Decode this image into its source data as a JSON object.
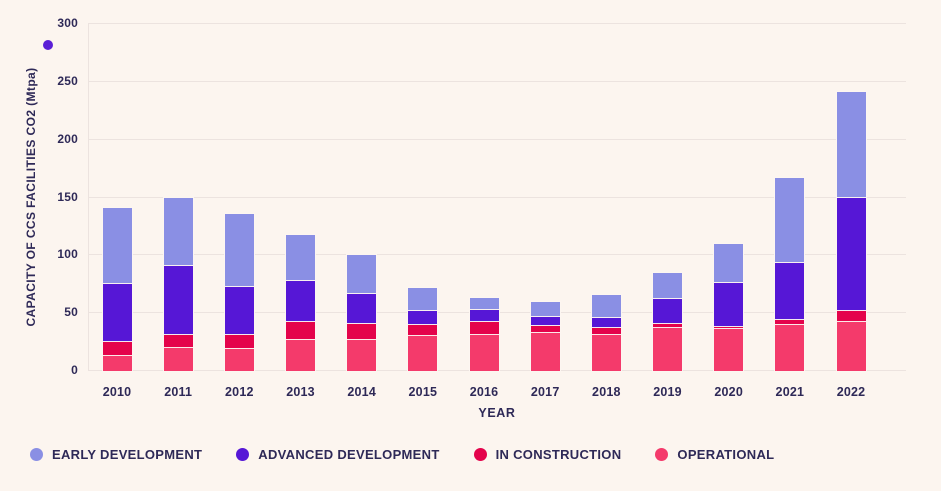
{
  "chart_data": {
    "type": "stacked-bar",
    "title": "",
    "xlabel": "YEAR",
    "ylabel": "CAPACITY OF CCS FACILITIES CO2 (Mtpa)",
    "ylim": [
      0,
      300
    ],
    "yticks": [
      0,
      50,
      100,
      150,
      200,
      250,
      300
    ],
    "grid": true,
    "legend_position": "bottom",
    "categories": [
      "2010",
      "2011",
      "2012",
      "2013",
      "2014",
      "2015",
      "2016",
      "2017",
      "2018",
      "2019",
      "2020",
      "2021",
      "2022"
    ],
    "series": [
      {
        "name": "OPERATIONAL",
        "color": "#f43a6b",
        "values": [
          13,
          20,
          19,
          27,
          27,
          30,
          31,
          33,
          31,
          37,
          36,
          40,
          42
        ]
      },
      {
        "name": "IN CONSTRUCTION",
        "color": "#e4034b",
        "values": [
          12,
          11,
          12,
          15,
          14,
          10,
          11,
          6,
          6,
          4,
          2,
          4,
          10
        ]
      },
      {
        "name": "ADVANCED DEVELOPMENT",
        "color": "#5617d6",
        "values": [
          50,
          60,
          42,
          36,
          26,
          12,
          11,
          8,
          9,
          21,
          38,
          49,
          98
        ]
      },
      {
        "name": "EARLY DEVELOPMENT",
        "color": "#8a8fe4",
        "values": [
          66,
          59,
          63,
          40,
          33,
          20,
          10,
          13,
          20,
          23,
          34,
          74,
          91
        ]
      }
    ],
    "totals": [
      141,
      150,
      136,
      118,
      100,
      72,
      63,
      60,
      66,
      85,
      110,
      167,
      241
    ],
    "legend": [
      {
        "label": "EARLY DEVELOPMENT",
        "color": "#8a8fe4"
      },
      {
        "label": "ADVANCED DEVELOPMENT",
        "color": "#5617d6"
      },
      {
        "label": "IN CONSTRUCTION",
        "color": "#e4034b"
      },
      {
        "label": "OPERATIONAL",
        "color": "#f43a6b"
      }
    ]
  },
  "decor": {
    "stray_dot_color": "#5b1fd6"
  },
  "style_colors": {
    "background": "#fcf5ef",
    "grid": "#ece3df",
    "text": "#2e2957"
  }
}
